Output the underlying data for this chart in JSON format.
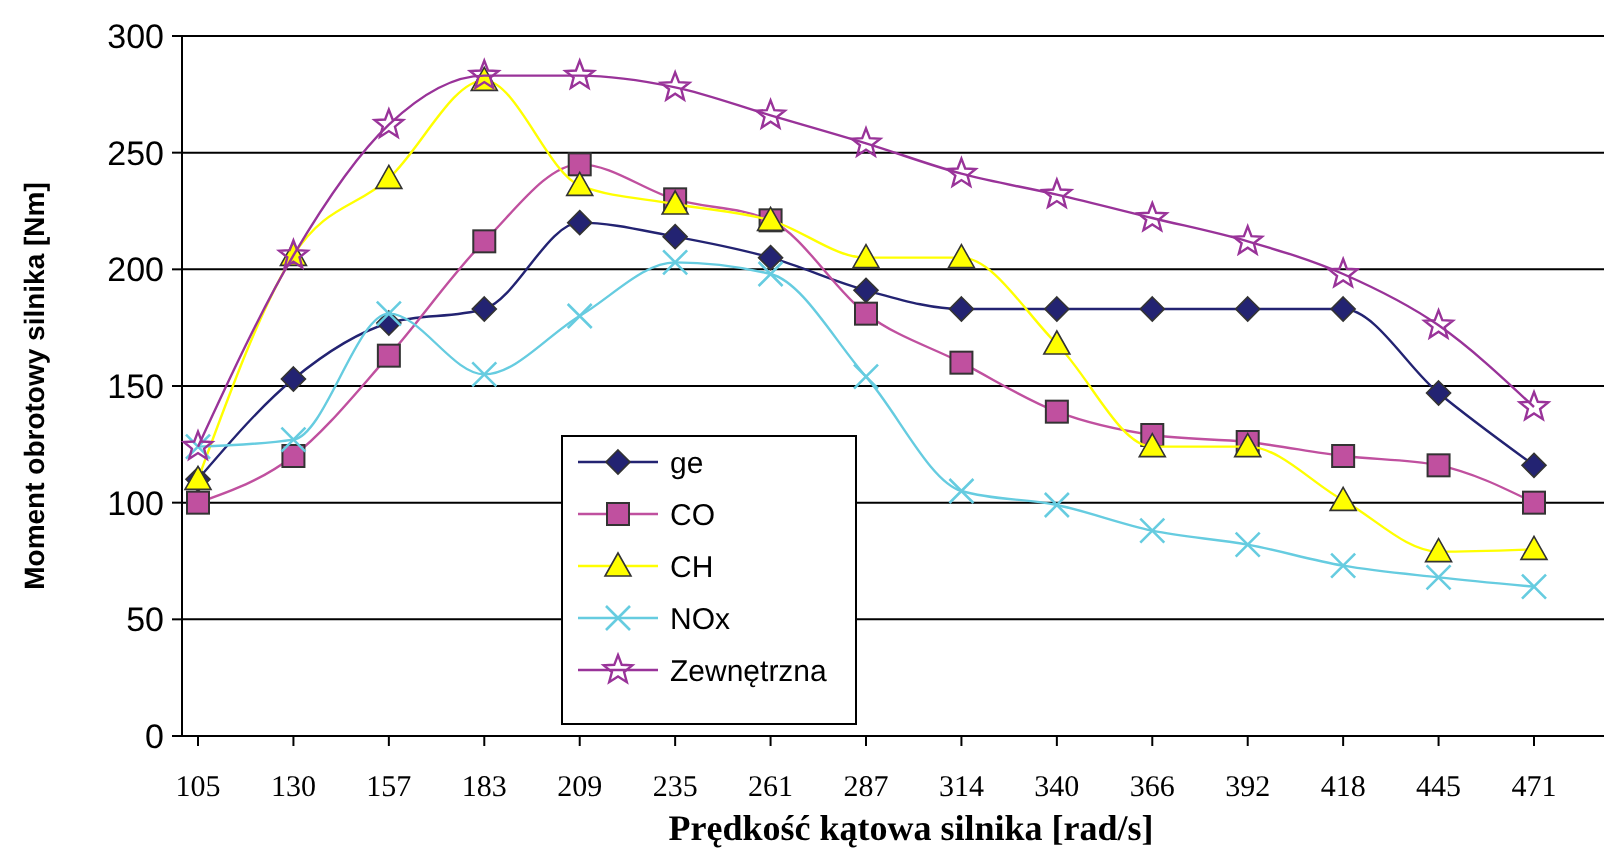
{
  "chart_data": {
    "type": "line",
    "xlabel": "Prędkość kątowa silnika [rad/s]",
    "ylabel": "Moment obrotowy silnika [Nm]",
    "categories": [
      "105",
      "130",
      "157",
      "183",
      "209",
      "235",
      "261",
      "287",
      "314",
      "340",
      "366",
      "392",
      "418",
      "445",
      "471"
    ],
    "ylim": [
      0,
      300
    ],
    "yticks": [
      0,
      50,
      100,
      150,
      200,
      250,
      300
    ],
    "grid": "y",
    "legend": "bottom",
    "series": [
      {
        "name": "ge",
        "color": "#232372",
        "marker": "diamond",
        "values": [
          110,
          153,
          177,
          183,
          220,
          214,
          205,
          191,
          183,
          183,
          183,
          183,
          183,
          147,
          116
        ]
      },
      {
        "name": "CO",
        "color": "#c0509f",
        "marker": "square",
        "values": [
          100,
          120,
          163,
          212,
          245,
          230,
          221,
          181,
          160,
          139,
          129,
          126,
          120,
          116,
          100
        ]
      },
      {
        "name": "CH",
        "color": "#ffff00",
        "marker": "triangle",
        "values": [
          110,
          206,
          239,
          281,
          236,
          228,
          221,
          205,
          205,
          168,
          124,
          124,
          101,
          79,
          80
        ]
      },
      {
        "name": "NOx",
        "color": "#66cce0",
        "marker": "cross",
        "values": [
          124,
          127,
          181,
          155,
          180,
          203,
          198,
          154,
          105,
          99,
          88,
          82,
          73,
          68,
          64
        ]
      },
      {
        "name": "Zewnętrzna",
        "color": "#993399",
        "marker": "star",
        "values": [
          124,
          206,
          262,
          283,
          283,
          278,
          266,
          254,
          241,
          232,
          222,
          212,
          198,
          176,
          141
        ]
      }
    ]
  }
}
